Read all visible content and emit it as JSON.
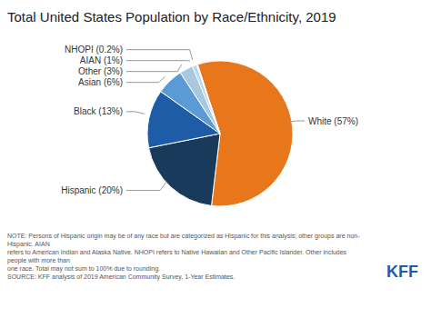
{
  "chart_data": {
    "type": "pie",
    "title": "Total United States Population by Race/Ethnicity, 2019",
    "categories": [
      "White",
      "Hispanic",
      "Black",
      "Asian",
      "Other",
      "AIAN",
      "NHOPI"
    ],
    "values": [
      57,
      20,
      13,
      6,
      3,
      1,
      0.2
    ],
    "value_labels": [
      "White (57%)",
      "Hispanic (20%)",
      "Black (13%)",
      "Asian (6%)",
      "Other (3%)",
      "AIAN (1%)",
      "NHOPI (0.2%)"
    ],
    "colors": [
      "#E8761A",
      "#1A3A5C",
      "#1E5CA8",
      "#5B9BD5",
      "#A8C8E0",
      "#BDD7EE",
      "#C8E8F0"
    ],
    "data_labels": true,
    "annotations": [
      "NOTE: Persons of Hispanic origin may be of any race but are categorized as Hispanic for this analysis; other groups are non-Hispanic. AIAN\nrefers to American Indian and Alaska Native. NHOPI refers to Native Hawaiian and Other Pacific Islander. Other includes people with more than\none race. Total may not sum to 100% due to rounding.\nSOURCE: KFF analysis of 2019 American Community Survey, 1-Year Estimates.",
      "KFF"
    ]
  }
}
